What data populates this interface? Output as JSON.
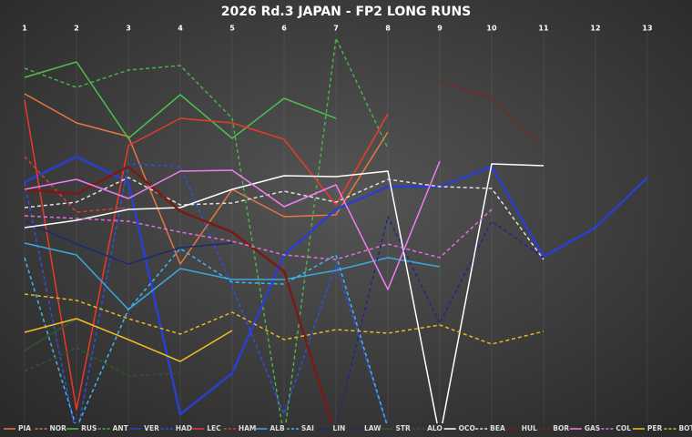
{
  "chart_data": {
    "type": "line",
    "title": "2026 Rd.3 JAPAN - FP2 LONG RUNS",
    "categories": [
      "1",
      "2",
      "3",
      "4",
      "5",
      "6",
      "7",
      "8",
      "9",
      "10",
      "11",
      "12",
      "13"
    ],
    "ylim": [
      465,
      35
    ],
    "grid": true,
    "series": [
      {
        "name": "PIA",
        "color": "#e8773e",
        "dashed": false,
        "values": [
          103,
          135,
          150,
          290,
          208,
          238,
          236,
          145,
          null,
          null,
          null,
          null,
          null
        ]
      },
      {
        "name": "NOR",
        "color": "#d9783a",
        "dashed": true,
        "values": [
          null,
          null,
          null,
          null,
          null,
          null,
          225,
          125,
          null,
          null,
          null,
          null,
          null
        ]
      },
      {
        "name": "RUS",
        "color": "#4cc04c",
        "dashed": false,
        "values": [
          85,
          68,
          152,
          104,
          152,
          108,
          130,
          null,
          null,
          null,
          null,
          null,
          null
        ]
      },
      {
        "name": "ANT",
        "color": "#4cb04c",
        "dashed": true,
        "values": [
          75,
          96,
          77,
          72,
          130,
          480,
          42,
          163,
          null,
          null,
          null,
          null,
          null
        ]
      },
      {
        "name": "VER",
        "color": "#2a3fd0",
        "dashed": false,
        "values": [
          200,
          172,
          200,
          455,
          410,
          280,
          230,
          205,
          205,
          183,
          282,
          250,
          195
        ]
      },
      {
        "name": "HAD",
        "color": "#3050e0",
        "dashed": true,
        "values": [
          200,
          480,
          180,
          183,
          315,
          455,
          290,
          470,
          null,
          null,
          null,
          null,
          null
        ]
      },
      {
        "name": "LEC",
        "color": "#e83a2a",
        "dashed": false,
        "values": [
          110,
          450,
          160,
          130,
          135,
          153,
          225,
          125,
          null,
          null,
          null,
          null,
          null
        ]
      },
      {
        "name": "HAM",
        "color": "#d8402a",
        "dashed": true,
        "values": [
          172,
          233,
          228,
          null,
          null,
          null,
          null,
          null,
          null,
          null,
          null,
          null,
          null
        ]
      },
      {
        "name": "ALB",
        "color": "#3aa8e0",
        "dashed": false,
        "values": [
          267,
          280,
          340,
          295,
          307,
          307,
          297,
          283,
          293,
          null,
          null,
          null,
          null
        ]
      },
      {
        "name": "SAI",
        "color": "#45b5f0",
        "dashed": true,
        "values": [
          283,
          470,
          340,
          273,
          310,
          312,
          280,
          470,
          null,
          280,
          null,
          null,
          null
        ]
      },
      {
        "name": "LIN",
        "color": "#1d2a70",
        "dashed": false,
        "values": [
          243,
          268,
          290,
          272,
          267,
          null,
          null,
          null,
          null,
          null,
          null,
          null,
          null
        ]
      },
      {
        "name": "LAW",
        "color": "#1d2a80",
        "dashed": true,
        "values": [
          null,
          null,
          null,
          null,
          null,
          null,
          470,
          238,
          355,
          243,
          283,
          null,
          null
        ]
      },
      {
        "name": "STR",
        "color": "#2f5a2a",
        "dashed": false,
        "values": [
          385,
          350,
          null,
          null,
          null,
          null,
          null,
          null,
          null,
          null,
          null,
          null,
          null
        ]
      },
      {
        "name": "ALO",
        "color": "#2f5a2a",
        "dashed": true,
        "values": [
          408,
          382,
          413,
          410,
          null,
          null,
          null,
          null,
          null,
          null,
          null,
          null,
          null
        ]
      },
      {
        "name": "OCO",
        "color": "#ffffff",
        "dashed": false,
        "values": [
          250,
          242,
          230,
          228,
          208,
          193,
          194,
          188,
          480,
          180,
          182,
          null,
          null
        ]
      },
      {
        "name": "BEA",
        "color": "#e0e0e0",
        "dashed": true,
        "values": [
          228,
          222,
          195,
          225,
          223,
          210,
          222,
          197,
          205,
          207,
          285,
          null,
          null
        ]
      },
      {
        "name": "HUL",
        "color": "#7a1a14",
        "dashed": false,
        "values": [
          208,
          213,
          183,
          232,
          255,
          298,
          480,
          null,
          null,
          null,
          null,
          null,
          null
        ]
      },
      {
        "name": "BOR",
        "color": "#8a1e16",
        "dashed": true,
        "values": [
          null,
          null,
          null,
          null,
          null,
          null,
          null,
          null,
          90,
          107,
          163,
          null,
          null
        ]
      },
      {
        "name": "GAS",
        "color": "#f07ef0",
        "dashed": false,
        "values": [
          208,
          197,
          218,
          188,
          187,
          227,
          203,
          318,
          177,
          null,
          null,
          null,
          null
        ]
      },
      {
        "name": "COL",
        "color": "#e070e0",
        "dashed": true,
        "values": [
          237,
          240,
          243,
          255,
          265,
          280,
          285,
          268,
          283,
          230,
          null,
          null,
          null
        ]
      },
      {
        "name": "PER",
        "color": "#f0c020",
        "dashed": false,
        "values": [
          365,
          350,
          373,
          397,
          363,
          null,
          null,
          null,
          null,
          null,
          null,
          null,
          null
        ]
      },
      {
        "name": "BOT",
        "color": "#e8b820",
        "dashed": true,
        "values": [
          323,
          330,
          350,
          367,
          343,
          373,
          362,
          366,
          357,
          378,
          364,
          null,
          null
        ]
      }
    ]
  }
}
